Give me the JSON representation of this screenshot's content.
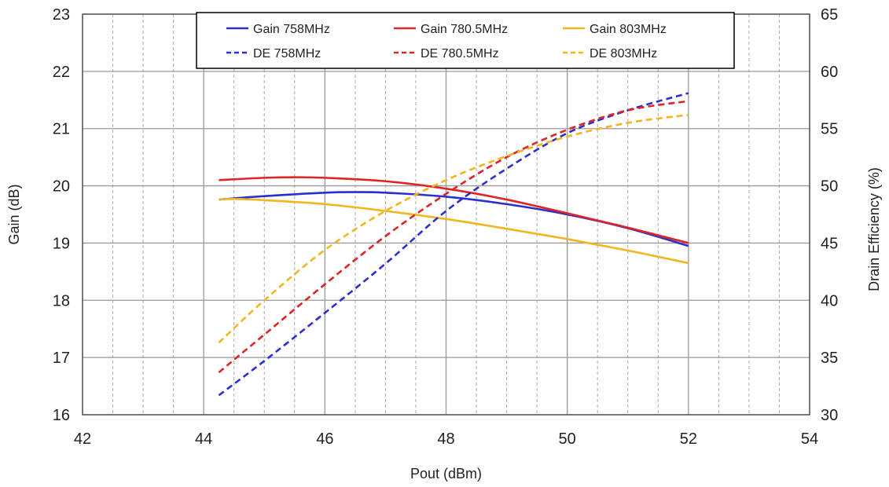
{
  "chart_data": {
    "type": "line",
    "title": "",
    "xlabel": "Pout (dBm)",
    "ylabel": "Gain (dB)",
    "y2label": "Drain Efficiency (%)",
    "xlim": [
      42,
      54
    ],
    "ylim": [
      16,
      23
    ],
    "y2lim": [
      30,
      65
    ],
    "x_ticks": [
      42,
      44,
      46,
      48,
      50,
      52,
      54
    ],
    "y_ticks": [
      16,
      17,
      18,
      19,
      20,
      21,
      22,
      23
    ],
    "y2_ticks": [
      30,
      35,
      40,
      45,
      50,
      55,
      60,
      65
    ],
    "grid": true,
    "legend_position": "top",
    "series": [
      {
        "name": "Gain 758MHz",
        "axis": "left",
        "color": "#2a2fd0",
        "dash": false,
        "x": [
          44.25,
          45,
          46,
          46.5,
          47,
          48,
          49,
          50,
          51,
          52
        ],
        "y": [
          19.76,
          19.82,
          19.88,
          19.89,
          19.88,
          19.81,
          19.68,
          19.5,
          19.26,
          18.95
        ]
      },
      {
        "name": "Gain 780.5MHz",
        "axis": "left",
        "color": "#e02424",
        "dash": false,
        "x": [
          44.25,
          45,
          45.5,
          46,
          47,
          48,
          49,
          50,
          51,
          52
        ],
        "y": [
          20.1,
          20.14,
          20.15,
          20.14,
          20.08,
          19.95,
          19.76,
          19.52,
          19.27,
          19.0
        ]
      },
      {
        "name": "Gain 803MHz",
        "axis": "left",
        "color": "#f2b51f",
        "dash": false,
        "x": [
          44.25,
          44.5,
          45,
          46,
          47,
          48,
          49,
          50,
          51,
          52
        ],
        "y": [
          19.76,
          19.77,
          19.75,
          19.68,
          19.56,
          19.42,
          19.25,
          19.07,
          18.87,
          18.65
        ]
      },
      {
        "name": "DE 758MHz",
        "axis": "right",
        "color": "#2a2fd0",
        "dash": true,
        "x": [
          44.25,
          45,
          46,
          47,
          48,
          49,
          50,
          51,
          52
        ],
        "y": [
          31.7,
          34.7,
          38.9,
          43.2,
          47.8,
          51.5,
          54.6,
          56.6,
          58.1
        ]
      },
      {
        "name": "DE 780.5MHz",
        "axis": "right",
        "color": "#e02424",
        "dash": true,
        "x": [
          44.25,
          45,
          46,
          47,
          48,
          49,
          50,
          51,
          52
        ],
        "y": [
          33.7,
          37.0,
          41.4,
          45.6,
          49.3,
          52.5,
          54.9,
          56.6,
          57.4
        ]
      },
      {
        "name": "DE 803MHz",
        "axis": "right",
        "color": "#f2b51f",
        "dash": true,
        "x": [
          44.25,
          45,
          46,
          47,
          48,
          49,
          50,
          51,
          52
        ],
        "y": [
          36.3,
          40.0,
          44.4,
          47.8,
          50.5,
          52.6,
          54.3,
          55.5,
          56.2
        ]
      }
    ]
  }
}
